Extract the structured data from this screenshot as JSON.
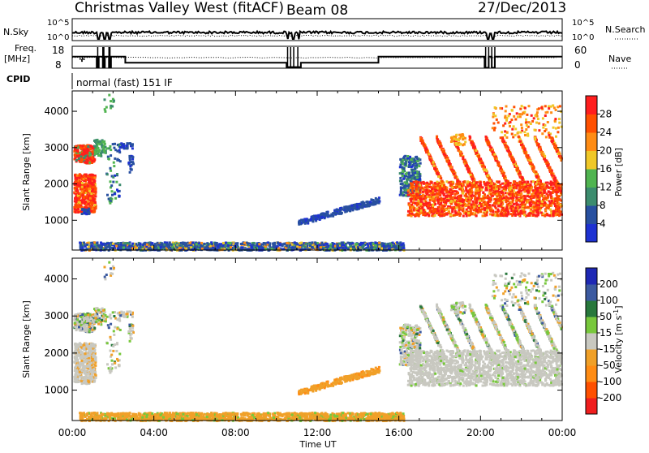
{
  "header": {
    "station": "Christmas Valley West (fitACF)",
    "beam": "Beam 08",
    "date": "27/Dec/2013"
  },
  "summary": {
    "nsky_label": "N.Sky",
    "nsky_ticks": [
      "10^5",
      "10^0"
    ],
    "nsearch_label": "N.Search",
    "nsearch_ticks": [
      "10^5",
      "10^0"
    ],
    "freq_label_line1": "Freq.",
    "freq_label_line2": "[MHz]",
    "freq_ticks": [
      "18",
      "8"
    ],
    "nave_label": "Nave",
    "nave_ticks": [
      "60",
      "0"
    ],
    "cpid_label": "CPID",
    "cpid_text": "normal (fast) 151 IF"
  },
  "chart_data": [
    {
      "type": "heatmap",
      "name": "power-panel",
      "title": "",
      "xlabel": "Time UT",
      "ylabel": "Slant Range [km]",
      "xlim_hours": [
        0,
        24
      ],
      "ylim_km": [
        180,
        4560
      ],
      "y_ticks": [
        1000,
        2000,
        3000,
        4000
      ],
      "colorbar": {
        "label": "Power [dB]",
        "ticks": [
          "4",
          "8",
          "12",
          "16",
          "20",
          "24",
          "28"
        ],
        "colors": [
          "#1e32d2",
          "#2850a0",
          "#3c8c6e",
          "#50b450",
          "#f0c828",
          "#ff8c14",
          "#ff5000",
          "#ff1e1e"
        ]
      }
    },
    {
      "type": "heatmap",
      "name": "velocity-panel",
      "title": "",
      "xlabel": "Time UT",
      "ylabel": "Slant Range [km]",
      "xlim_hours": [
        0,
        24
      ],
      "ylim_km": [
        180,
        4560
      ],
      "y_ticks": [
        1000,
        2000,
        3000,
        4000
      ],
      "x_tick_labels": [
        "00:00",
        "04:00",
        "08:00",
        "12:00",
        "16:00",
        "20:00",
        "00:00"
      ],
      "x_tick_hours": [
        0,
        4,
        8,
        12,
        16,
        20,
        24
      ],
      "colorbar": {
        "label": "Velocity [m s^-1]",
        "ticks": [
          "200",
          "100",
          "50",
          "15",
          "-15",
          "-50",
          "-100",
          "-200"
        ],
        "colors": [
          "#1e28b4",
          "#3c5aa0",
          "#28783c",
          "#78c83c",
          "#c8c8c0",
          "#f0a028",
          "#ff8c14",
          "#ff5000",
          "#f01e1e"
        ]
      }
    }
  ]
}
